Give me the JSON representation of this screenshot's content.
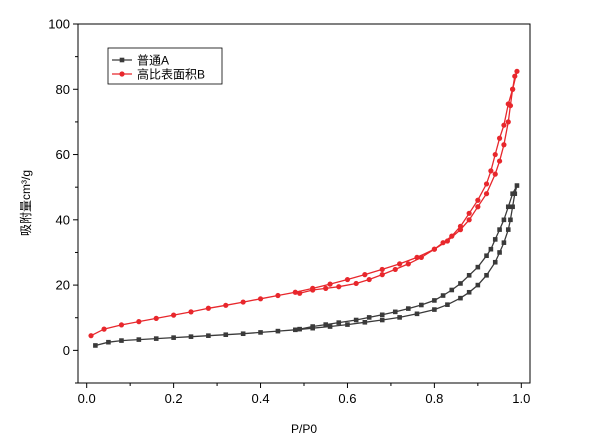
{
  "chart_data": {
    "type": "line",
    "xlabel": "P/P0",
    "ylabel": "吸附量cm³/g",
    "xlim": [
      -0.02,
      1.02
    ],
    "ylim": [
      -10,
      100
    ],
    "xticks": [
      "0.0",
      "0.2",
      "0.4",
      "0.6",
      "0.8",
      "1.0"
    ],
    "yticks": [
      "0",
      "20",
      "40",
      "60",
      "80",
      "100"
    ],
    "grid": false,
    "legend_position": "top-left",
    "series": [
      {
        "name": "普通A",
        "color": "#3a3a3a",
        "marker": "square",
        "x": [
          0.02,
          0.05,
          0.08,
          0.12,
          0.16,
          0.2,
          0.24,
          0.28,
          0.32,
          0.36,
          0.4,
          0.44,
          0.48,
          0.52,
          0.56,
          0.6,
          0.64,
          0.68,
          0.72,
          0.76,
          0.8,
          0.83,
          0.86,
          0.88,
          0.9,
          0.92,
          0.94,
          0.95,
          0.96,
          0.97,
          0.975,
          0.98,
          0.985,
          0.99,
          0.98,
          0.97,
          0.96,
          0.95,
          0.94,
          0.93,
          0.92,
          0.9,
          0.88,
          0.86,
          0.84,
          0.82,
          0.8,
          0.77,
          0.74,
          0.71,
          0.68,
          0.65,
          0.62,
          0.58,
          0.55,
          0.52,
          0.49
        ],
        "y": [
          1.5,
          2.5,
          3.0,
          3.3,
          3.6,
          3.9,
          4.2,
          4.5,
          4.8,
          5.1,
          5.5,
          5.9,
          6.3,
          6.8,
          7.3,
          7.9,
          8.6,
          9.3,
          10.1,
          11.2,
          12.5,
          14.0,
          16.0,
          17.8,
          20.0,
          23.0,
          27.0,
          30.0,
          33.0,
          37.0,
          40.0,
          44.0,
          48.0,
          50.5,
          48.0,
          44.0,
          40.0,
          37.0,
          34.0,
          31.0,
          29.0,
          25.5,
          23.0,
          20.5,
          18.5,
          16.8,
          15.3,
          13.9,
          12.8,
          11.8,
          10.9,
          10.1,
          9.3,
          8.5,
          7.9,
          7.3,
          6.5
        ]
      },
      {
        "name": "高比表面积B",
        "color": "#e8272c",
        "marker": "circle",
        "x": [
          0.01,
          0.04,
          0.08,
          0.12,
          0.16,
          0.2,
          0.24,
          0.28,
          0.32,
          0.36,
          0.4,
          0.44,
          0.48,
          0.52,
          0.56,
          0.6,
          0.64,
          0.68,
          0.72,
          0.76,
          0.8,
          0.83,
          0.86,
          0.88,
          0.9,
          0.92,
          0.94,
          0.95,
          0.96,
          0.97,
          0.975,
          0.98,
          0.985,
          0.99,
          0.98,
          0.97,
          0.96,
          0.95,
          0.94,
          0.93,
          0.92,
          0.9,
          0.88,
          0.86,
          0.84,
          0.82,
          0.8,
          0.77,
          0.74,
          0.71,
          0.68,
          0.65,
          0.62,
          0.58,
          0.55,
          0.52,
          0.49
        ],
        "y": [
          4.5,
          6.5,
          7.8,
          8.8,
          9.8,
          10.8,
          11.8,
          12.9,
          13.8,
          14.8,
          15.8,
          16.8,
          17.8,
          19.0,
          20.3,
          21.7,
          23.2,
          24.8,
          26.5,
          28.5,
          31.0,
          33.5,
          37.0,
          40.0,
          44.0,
          48.0,
          54.0,
          58.0,
          63.0,
          70.0,
          75.0,
          80.0,
          84.0,
          85.5,
          80.0,
          75.5,
          69.0,
          65.0,
          60.0,
          55.0,
          51.0,
          46.0,
          42.0,
          38.0,
          35.0,
          33.0,
          31.0,
          28.5,
          26.5,
          24.8,
          23.2,
          21.7,
          20.5,
          19.5,
          19.0,
          18.5,
          17.5
        ]
      }
    ]
  }
}
